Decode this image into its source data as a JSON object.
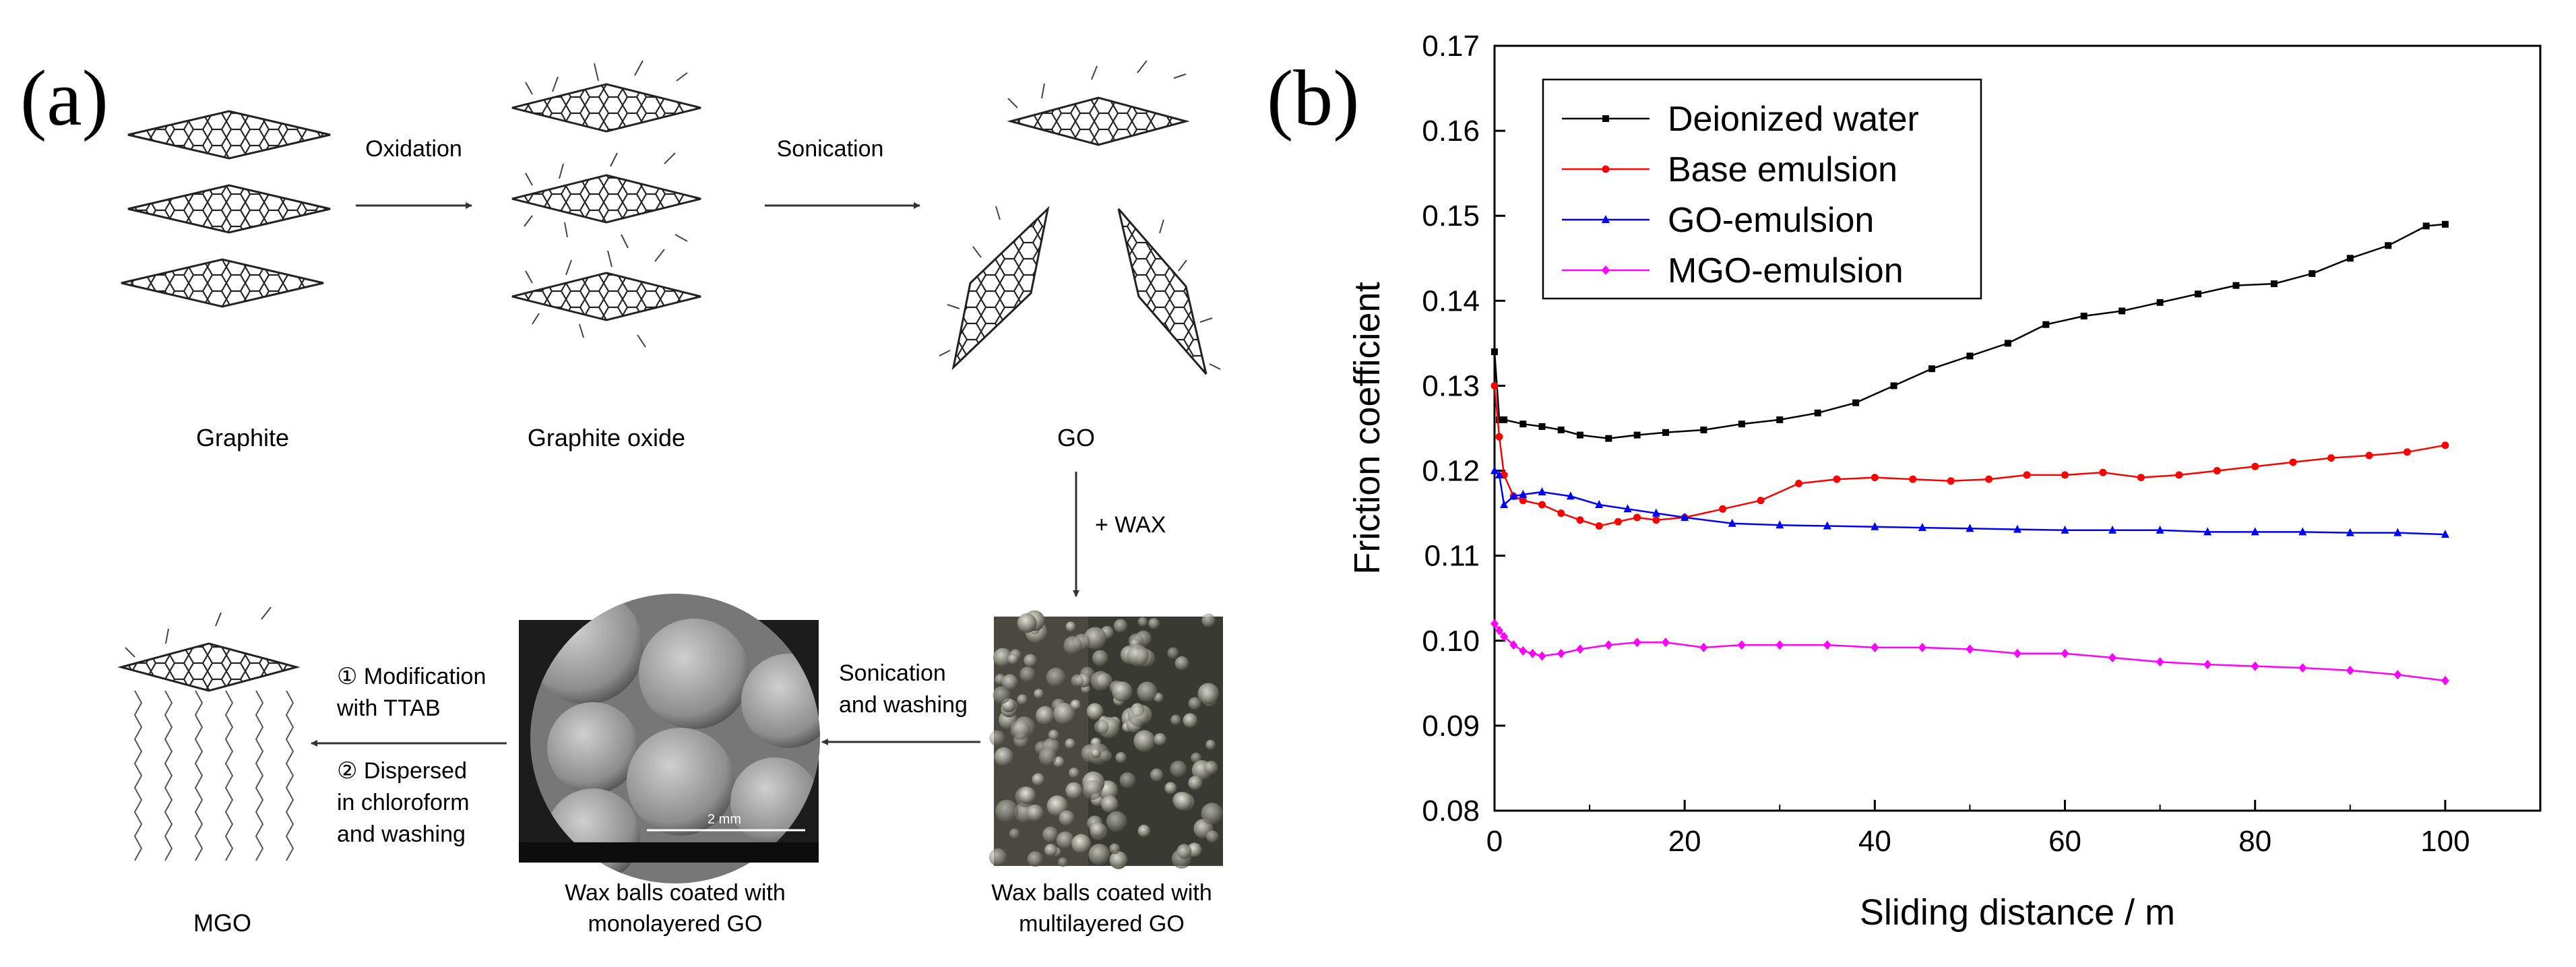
{
  "panel_a": {
    "label": "(a)",
    "steps": {
      "graphite": "Graphite",
      "graphite_oxide": "Graphite oxide",
      "go": "GO",
      "wax_multi_1": "Wax balls coated with",
      "wax_multi_2": "multilayered GO",
      "wax_mono_1": "Wax balls coated with",
      "wax_mono_2": "monolayered GO",
      "mgo": "MGO"
    },
    "arrows": {
      "oxidation": "Oxidation",
      "sonication": "Sonication",
      "wax": "+ WAX",
      "sonication_washing_1": "Sonication",
      "sonication_washing_2": "and washing",
      "step1_1": "① Modification",
      "step1_2": "with TTAB",
      "step2_1": "② Dispersed",
      "step2_2": "in chloroform",
      "step2_3": "and washing"
    },
    "sem_scale": "2 mm",
    "colors": {
      "wax_photo_bg": "#3a3a34",
      "sem_bg": "#8a8a8a"
    }
  },
  "chart_data": {
    "label": "(b)",
    "type": "line",
    "xlabel": "Sliding distance / m",
    "ylabel": "Friction coefficient",
    "xlim": [
      0,
      110
    ],
    "ylim": [
      0.08,
      0.17
    ],
    "xticks": [
      0,
      20,
      40,
      60,
      80,
      100
    ],
    "yticks": [
      0.08,
      0.09,
      0.1,
      0.11,
      0.12,
      0.13,
      0.14,
      0.15,
      0.16,
      0.17
    ],
    "xtick_labels": [
      "0",
      "20",
      "40",
      "60",
      "80",
      "100"
    ],
    "ytick_labels": [
      "0.08",
      "0.09",
      "0.10",
      "0.11",
      "0.12",
      "0.13",
      "0.14",
      "0.15",
      "0.16",
      "0.17"
    ],
    "legend_position": "top-left",
    "series": [
      {
        "name": "Deionized water",
        "color": "#000000",
        "marker": "square",
        "x": [
          0,
          0.5,
          1,
          3,
          5,
          7,
          9,
          12,
          15,
          18,
          22,
          26,
          30,
          34,
          38,
          42,
          46,
          50,
          54,
          58,
          62,
          66,
          70,
          74,
          78,
          82,
          86,
          90,
          94,
          98,
          100
        ],
        "y": [
          0.134,
          0.126,
          0.126,
          0.1255,
          0.1252,
          0.1248,
          0.1242,
          0.1238,
          0.1242,
          0.1245,
          0.1248,
          0.1255,
          0.126,
          0.1268,
          0.128,
          0.13,
          0.132,
          0.1335,
          0.135,
          0.1372,
          0.1382,
          0.1388,
          0.1398,
          0.1408,
          0.1418,
          0.142,
          0.1432,
          0.145,
          0.1465,
          0.1488,
          0.149
        ]
      },
      {
        "name": "Base emulsion",
        "color": "#ff0000",
        "marker": "circle",
        "x": [
          0,
          0.5,
          1,
          2,
          3,
          5,
          7,
          9,
          11,
          13,
          15,
          17,
          20,
          24,
          28,
          32,
          36,
          40,
          44,
          48,
          52,
          56,
          60,
          64,
          68,
          72,
          76,
          80,
          84,
          88,
          92,
          96,
          100
        ],
        "y": [
          0.13,
          0.124,
          0.1195,
          0.117,
          0.1165,
          0.116,
          0.115,
          0.1142,
          0.1135,
          0.114,
          0.1145,
          0.1142,
          0.1145,
          0.1155,
          0.1165,
          0.1185,
          0.119,
          0.1192,
          0.119,
          0.1188,
          0.119,
          0.1195,
          0.1195,
          0.1198,
          0.1192,
          0.1195,
          0.12,
          0.1205,
          0.121,
          0.1215,
          0.1218,
          0.1222,
          0.123
        ]
      },
      {
        "name": "GO-emulsion",
        "color": "#0000ff",
        "marker": "triangle",
        "x": [
          0,
          0.5,
          1,
          2,
          3,
          5,
          8,
          11,
          14,
          17,
          20,
          25,
          30,
          35,
          40,
          45,
          50,
          55,
          60,
          65,
          70,
          75,
          80,
          85,
          90,
          95,
          100
        ],
        "y": [
          0.12,
          0.1195,
          0.116,
          0.117,
          0.1172,
          0.1175,
          0.117,
          0.116,
          0.1155,
          0.115,
          0.1145,
          0.1138,
          0.1136,
          0.1135,
          0.1134,
          0.1133,
          0.1132,
          0.1131,
          0.113,
          0.113,
          0.113,
          0.1128,
          0.1128,
          0.1128,
          0.1127,
          0.1127,
          0.1125
        ]
      },
      {
        "name": "MGO-emulsion",
        "color": "#ff00ff",
        "marker": "diamond",
        "x": [
          0,
          0.5,
          1,
          2,
          3,
          4,
          5,
          7,
          9,
          12,
          15,
          18,
          22,
          26,
          30,
          35,
          40,
          45,
          50,
          55,
          60,
          65,
          70,
          75,
          80,
          85,
          90,
          95,
          100
        ],
        "y": [
          0.102,
          0.1012,
          0.1005,
          0.0995,
          0.0988,
          0.0985,
          0.0982,
          0.0985,
          0.099,
          0.0995,
          0.0998,
          0.0998,
          0.0992,
          0.0995,
          0.0995,
          0.0995,
          0.0992,
          0.0992,
          0.099,
          0.0985,
          0.0985,
          0.098,
          0.0975,
          0.0972,
          0.097,
          0.0968,
          0.0965,
          0.096,
          0.0953
        ]
      }
    ]
  }
}
